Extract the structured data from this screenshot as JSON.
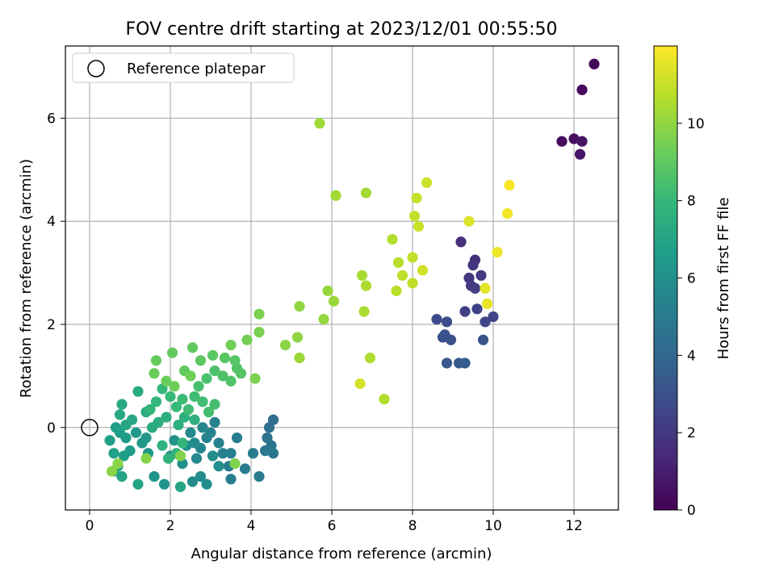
{
  "chart_data": {
    "type": "scatter",
    "title": "FOV centre drift starting at 2023/12/01 00:55:50",
    "xlabel": "Angular distance from reference (arcmin)",
    "ylabel": "Rotation from reference (arcmin)",
    "xlim": [
      -0.6,
      13.1
    ],
    "ylim": [
      -1.6,
      7.4
    ],
    "xticks": [
      0,
      2,
      4,
      6,
      8,
      10,
      12
    ],
    "yticks": [
      0,
      2,
      4,
      6
    ],
    "grid": true,
    "legend": {
      "placement": "top-left",
      "entries": [
        "Reference platepar"
      ]
    },
    "reference_point": {
      "x": 0,
      "y": 0,
      "label": "Reference platepar"
    },
    "colorbar": {
      "label": "Hours from first FF file",
      "range": [
        0,
        12
      ],
      "ticks": [
        0,
        2,
        4,
        6,
        8,
        10
      ],
      "colormap": "viridis",
      "colormap_stops": [
        "#440154",
        "#482878",
        "#3e4989",
        "#31688e",
        "#26828e",
        "#1f9e89",
        "#35b779",
        "#6ece58",
        "#b5de2b",
        "#fde725"
      ]
    },
    "points": [
      [
        12.5,
        7.05,
        0.2
      ],
      [
        12.2,
        6.55,
        0.3
      ],
      [
        11.7,
        5.55,
        0.4
      ],
      [
        12.0,
        5.6,
        0.5
      ],
      [
        12.2,
        5.55,
        0.6
      ],
      [
        12.15,
        5.3,
        0.7
      ],
      [
        9.2,
        3.6,
        1.6
      ],
      [
        9.55,
        3.25,
        1.7
      ],
      [
        9.5,
        3.15,
        1.8
      ],
      [
        9.4,
        2.9,
        1.9
      ],
      [
        9.7,
        2.95,
        2.0
      ],
      [
        9.45,
        2.75,
        2.1
      ],
      [
        9.55,
        2.7,
        2.2
      ],
      [
        9.3,
        2.25,
        2.3
      ],
      [
        9.6,
        2.3,
        2.4
      ],
      [
        10.0,
        2.15,
        2.5
      ],
      [
        9.8,
        2.05,
        2.6
      ],
      [
        8.6,
        2.1,
        2.7
      ],
      [
        8.85,
        2.05,
        2.8
      ],
      [
        8.75,
        1.75,
        2.9
      ],
      [
        8.95,
        1.7,
        3.0
      ],
      [
        8.8,
        1.8,
        3.1
      ],
      [
        9.75,
        1.7,
        3.2
      ],
      [
        8.85,
        1.25,
        3.3
      ],
      [
        9.15,
        1.25,
        3.4
      ],
      [
        9.3,
        1.25,
        3.5
      ],
      [
        4.55,
        0.15,
        4.3
      ],
      [
        4.45,
        0.0,
        4.4
      ],
      [
        4.4,
        -0.2,
        4.5
      ],
      [
        4.5,
        -0.35,
        4.6
      ],
      [
        4.55,
        -0.5,
        4.7
      ],
      [
        4.35,
        -0.45,
        4.8
      ],
      [
        4.2,
        -0.95,
        4.9
      ],
      [
        4.05,
        -0.5,
        4.95
      ],
      [
        3.85,
        -0.8,
        5.0
      ],
      [
        3.65,
        -0.2,
        5.05
      ],
      [
        3.5,
        -0.5,
        5.1
      ],
      [
        3.45,
        -0.75,
        5.15
      ],
      [
        3.5,
        -1.0,
        5.2
      ],
      [
        3.3,
        -0.5,
        5.25
      ],
      [
        3.2,
        -0.3,
        5.3
      ],
      [
        3.1,
        0.1,
        5.35
      ],
      [
        3.0,
        -0.1,
        5.4
      ],
      [
        2.9,
        -0.2,
        5.45
      ],
      [
        2.8,
        0.0,
        5.5
      ],
      [
        2.75,
        -0.4,
        5.55
      ],
      [
        2.65,
        -0.6,
        5.6
      ],
      [
        2.6,
        -0.3,
        5.65
      ],
      [
        2.5,
        -0.1,
        5.7
      ],
      [
        2.55,
        -1.05,
        5.75
      ],
      [
        2.75,
        -0.95,
        5.8
      ],
      [
        2.9,
        -1.1,
        5.85
      ],
      [
        3.05,
        -0.55,
        5.9
      ],
      [
        3.2,
        -0.75,
        5.95
      ],
      [
        2.4,
        -0.35,
        6.0
      ],
      [
        2.3,
        -0.7,
        6.05
      ],
      [
        2.1,
        -0.25,
        6.1
      ],
      [
        2.0,
        -0.55,
        6.15
      ],
      [
        1.85,
        -1.1,
        6.2
      ],
      [
        1.6,
        -0.95,
        6.25
      ],
      [
        1.45,
        -0.5,
        6.3
      ],
      [
        1.4,
        -0.2,
        6.35
      ],
      [
        1.3,
        -0.3,
        6.4
      ],
      [
        1.15,
        -0.1,
        6.45
      ],
      [
        1.0,
        -0.45,
        6.5
      ],
      [
        0.9,
        -0.2,
        6.55
      ],
      [
        0.85,
        -0.55,
        6.6
      ],
      [
        0.75,
        -0.1,
        6.65
      ],
      [
        0.65,
        0.0,
        6.7
      ],
      [
        0.5,
        -0.25,
        6.75
      ],
      [
        0.6,
        -0.5,
        6.8
      ],
      [
        0.7,
        -0.75,
        6.85
      ],
      [
        0.6,
        -0.85,
        6.9
      ],
      [
        0.8,
        -0.95,
        6.95
      ],
      [
        1.2,
        -1.1,
        7.0
      ],
      [
        2.25,
        -1.15,
        7.05
      ],
      [
        0.9,
        0.05,
        7.1
      ],
      [
        1.05,
        0.15,
        7.15
      ],
      [
        0.75,
        0.25,
        7.2
      ],
      [
        0.8,
        0.45,
        7.25
      ],
      [
        1.2,
        0.7,
        7.3
      ],
      [
        1.4,
        0.3,
        7.35
      ],
      [
        1.55,
        0.0,
        7.4
      ],
      [
        1.7,
        0.1,
        7.45
      ],
      [
        1.9,
        0.2,
        7.5
      ],
      [
        2.2,
        0.05,
        7.55
      ],
      [
        2.35,
        0.2,
        7.6
      ],
      [
        2.6,
        0.15,
        7.65
      ],
      [
        1.8,
        -0.35,
        7.7
      ],
      [
        1.95,
        -0.6,
        7.75
      ],
      [
        2.15,
        -0.5,
        7.8
      ],
      [
        2.3,
        -0.3,
        7.85
      ],
      [
        1.5,
        0.35,
        7.9
      ],
      [
        1.65,
        0.5,
        7.95
      ],
      [
        1.8,
        0.75,
        8.0
      ],
      [
        2.0,
        0.6,
        8.05
      ],
      [
        2.15,
        0.4,
        8.1
      ],
      [
        2.3,
        0.55,
        8.15
      ],
      [
        2.45,
        0.35,
        8.2
      ],
      [
        2.6,
        0.6,
        8.25
      ],
      [
        2.8,
        0.5,
        8.3
      ],
      [
        2.95,
        0.3,
        8.35
      ],
      [
        3.1,
        0.45,
        8.4
      ],
      [
        2.7,
        0.8,
        8.45
      ],
      [
        2.9,
        0.95,
        8.5
      ],
      [
        3.1,
        1.1,
        8.55
      ],
      [
        3.3,
        1.0,
        8.6
      ],
      [
        3.5,
        0.9,
        8.65
      ],
      [
        3.65,
        1.15,
        8.7
      ],
      [
        3.75,
        1.05,
        8.75
      ],
      [
        3.6,
        1.3,
        8.8
      ],
      [
        3.35,
        1.35,
        8.85
      ],
      [
        3.05,
        1.4,
        8.9
      ],
      [
        2.75,
        1.3,
        8.95
      ],
      [
        2.55,
        1.55,
        9.0
      ],
      [
        2.35,
        1.1,
        9.05
      ],
      [
        2.05,
        1.45,
        9.1
      ],
      [
        1.65,
        1.3,
        9.15
      ],
      [
        1.6,
        1.05,
        9.2
      ],
      [
        1.9,
        0.9,
        9.25
      ],
      [
        2.1,
        0.8,
        9.3
      ],
      [
        2.5,
        1.0,
        9.35
      ],
      [
        3.5,
        1.6,
        9.4
      ],
      [
        3.9,
        1.7,
        9.45
      ],
      [
        4.2,
        1.85,
        9.5
      ],
      [
        4.2,
        2.2,
        9.55
      ],
      [
        4.1,
        0.95,
        9.6
      ],
      [
        3.6,
        -0.7,
        9.65
      ],
      [
        2.25,
        -0.55,
        9.7
      ],
      [
        1.4,
        -0.6,
        9.75
      ],
      [
        0.7,
        -0.7,
        9.8
      ],
      [
        0.55,
        -0.85,
        9.85
      ],
      [
        4.85,
        1.6,
        9.9
      ],
      [
        5.15,
        1.75,
        9.95
      ],
      [
        5.2,
        2.35,
        10.0
      ],
      [
        5.8,
        2.1,
        10.05
      ],
      [
        5.9,
        2.65,
        10.1
      ],
      [
        6.05,
        2.45,
        10.15
      ],
      [
        5.2,
        1.35,
        10.2
      ],
      [
        5.7,
        5.9,
        10.25
      ],
      [
        6.1,
        4.5,
        10.3
      ],
      [
        6.85,
        4.55,
        10.35
      ],
      [
        6.75,
        2.95,
        10.4
      ],
      [
        6.8,
        2.25,
        10.45
      ],
      [
        6.85,
        2.75,
        10.5
      ],
      [
        6.95,
        1.35,
        10.55
      ],
      [
        7.3,
        0.55,
        10.6
      ],
      [
        7.5,
        3.65,
        10.65
      ],
      [
        7.65,
        3.2,
        10.7
      ],
      [
        7.6,
        2.65,
        10.75
      ],
      [
        7.75,
        2.95,
        10.8
      ],
      [
        8.0,
        2.8,
        10.85
      ],
      [
        8.0,
        3.3,
        10.9
      ],
      [
        8.05,
        4.1,
        10.95
      ],
      [
        8.1,
        4.45,
        11.0
      ],
      [
        8.15,
        3.9,
        11.05
      ],
      [
        8.35,
        4.75,
        11.1
      ],
      [
        8.25,
        3.05,
        11.15
      ],
      [
        6.7,
        0.85,
        11.2
      ],
      [
        9.4,
        4.0,
        11.4
      ],
      [
        9.8,
        2.7,
        11.5
      ],
      [
        9.85,
        2.4,
        11.6
      ],
      [
        10.1,
        3.4,
        11.7
      ],
      [
        10.35,
        4.15,
        11.8
      ],
      [
        10.4,
        4.7,
        11.9
      ]
    ]
  }
}
